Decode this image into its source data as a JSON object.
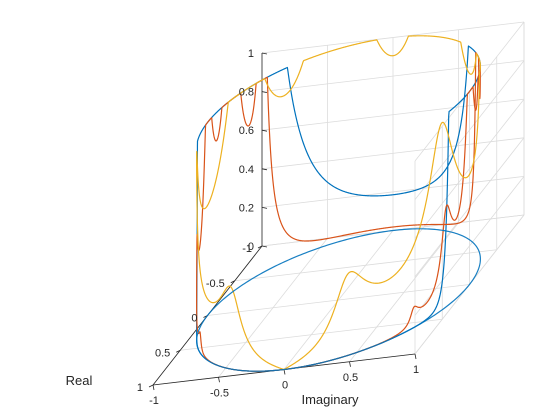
{
  "chart_data": {
    "type": "line3d",
    "title": "",
    "xlabel": "Real",
    "ylabel": "Imaginary",
    "zlabel": "",
    "xlim": [
      -1,
      1
    ],
    "ylim": [
      -1,
      1
    ],
    "zlim": [
      0,
      1
    ],
    "grid": true,
    "colors": [
      "#0072BD",
      "#D95319",
      "#EDB120"
    ],
    "x_ticks": [
      -1,
      -0.5,
      0,
      0.5,
      1
    ],
    "y_ticks": [
      -1,
      -0.5,
      0,
      0.5,
      1
    ],
    "z_ticks": [
      0,
      0.2,
      0.4,
      0.6,
      0.8,
      1
    ],
    "x_tick_labels": [
      "-1",
      "-0.5",
      "0",
      "0.5",
      "1"
    ],
    "y_tick_labels": [
      "-1",
      "-0.5",
      "0",
      "0.5",
      "1"
    ],
    "z_tick_labels": [
      "0",
      "0.2",
      "0.4",
      "0.6",
      "0.8",
      "1"
    ],
    "series": [
      {
        "color": "#0072BD"
      },
      {
        "color": "#D95319"
      },
      {
        "color": "#EDB120"
      }
    ]
  }
}
